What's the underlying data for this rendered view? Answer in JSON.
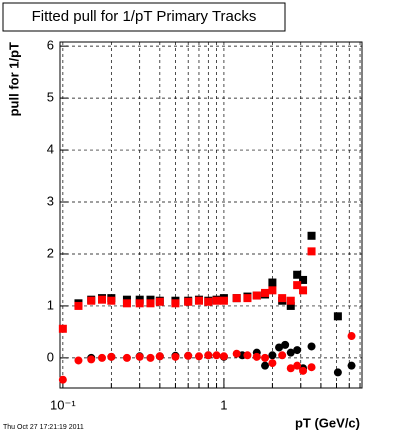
{
  "chart_data": {
    "type": "scatter",
    "title": "Fitted pull for 1/pT  Primary Tracks",
    "x_label": "pT (GeV/c)",
    "y_label": "pull for 1/pT",
    "timestamp": "Thu Oct 27 17:21:19 2011",
    "xlog": true,
    "xlim": [
      0.096,
      7.2
    ],
    "ylim": [
      -0.58,
      6.08
    ],
    "xticks": [
      {
        "value": 0.1,
        "label": "10⁻¹"
      },
      {
        "value": 1,
        "label": "1"
      }
    ],
    "xminor": [
      0.2,
      0.3,
      0.4,
      0.5,
      0.6,
      0.7,
      0.8,
      0.9,
      2,
      3,
      4,
      5,
      6,
      7
    ],
    "yticks": [
      0,
      1,
      2,
      3,
      4,
      5,
      6
    ],
    "grid": true,
    "series": [
      {
        "color": "#000000",
        "marker": "square",
        "x": [
          0.125,
          0.15,
          0.175,
          0.2,
          0.25,
          0.3,
          0.35,
          0.4,
          0.5,
          0.6,
          0.7,
          0.8,
          0.9,
          1.0,
          1.2,
          1.4,
          1.6,
          1.8,
          2.0,
          2.3,
          2.6,
          2.85,
          3.1,
          3.5,
          5.1
        ],
        "values": [
          1.05,
          1.12,
          1.15,
          1.15,
          1.12,
          1.12,
          1.12,
          1.1,
          1.1,
          1.1,
          1.12,
          1.1,
          1.12,
          1.15,
          1.15,
          1.18,
          1.2,
          1.22,
          1.45,
          1.1,
          1.0,
          1.6,
          1.5,
          2.35,
          0.8
        ]
      },
      {
        "color": "#ff0000",
        "marker": "square",
        "x": [
          0.1,
          0.125,
          0.15,
          0.175,
          0.2,
          0.25,
          0.3,
          0.35,
          0.4,
          0.5,
          0.6,
          0.7,
          0.8,
          0.9,
          1.0,
          1.2,
          1.4,
          1.6,
          1.8,
          2.0,
          2.3,
          2.6,
          2.85,
          3.1,
          3.5
        ],
        "values": [
          0.56,
          1.0,
          1.1,
          1.12,
          1.1,
          1.05,
          1.05,
          1.05,
          1.08,
          1.05,
          1.08,
          1.1,
          1.08,
          1.1,
          1.1,
          1.15,
          1.15,
          1.2,
          1.25,
          1.3,
          1.15,
          1.1,
          1.4,
          1.3,
          2.05
        ]
      },
      {
        "color": "#000000",
        "marker": "circle",
        "x": [
          0.15,
          0.2,
          0.3,
          0.4,
          0.5,
          0.6,
          0.8,
          1.0,
          1.3,
          1.6,
          1.8,
          2.0,
          2.2,
          2.4,
          2.6,
          2.85,
          3.1,
          3.5,
          5.1,
          6.2
        ],
        "values": [
          0.0,
          0.02,
          0.03,
          0.03,
          0.04,
          0.04,
          0.05,
          0.02,
          0.05,
          0.1,
          -0.15,
          0.05,
          0.2,
          0.25,
          0.1,
          0.15,
          -0.2,
          0.22,
          -0.28,
          -0.15
        ]
      },
      {
        "color": "#ff0000",
        "marker": "circle",
        "x": [
          0.1,
          0.125,
          0.15,
          0.175,
          0.2,
          0.25,
          0.3,
          0.35,
          0.4,
          0.5,
          0.6,
          0.7,
          0.8,
          0.9,
          1.0,
          1.2,
          1.4,
          1.6,
          1.8,
          2.0,
          2.3,
          2.6,
          2.85,
          3.1,
          3.5,
          6.2
        ],
        "values": [
          -0.42,
          -0.05,
          -0.03,
          0.0,
          0.02,
          0.0,
          0.02,
          0.0,
          0.03,
          0.02,
          0.04,
          0.03,
          0.05,
          0.05,
          0.03,
          0.08,
          0.05,
          0.02,
          0.0,
          -0.1,
          0.05,
          -0.2,
          -0.15,
          -0.25,
          -0.18,
          0.42
        ]
      }
    ]
  }
}
